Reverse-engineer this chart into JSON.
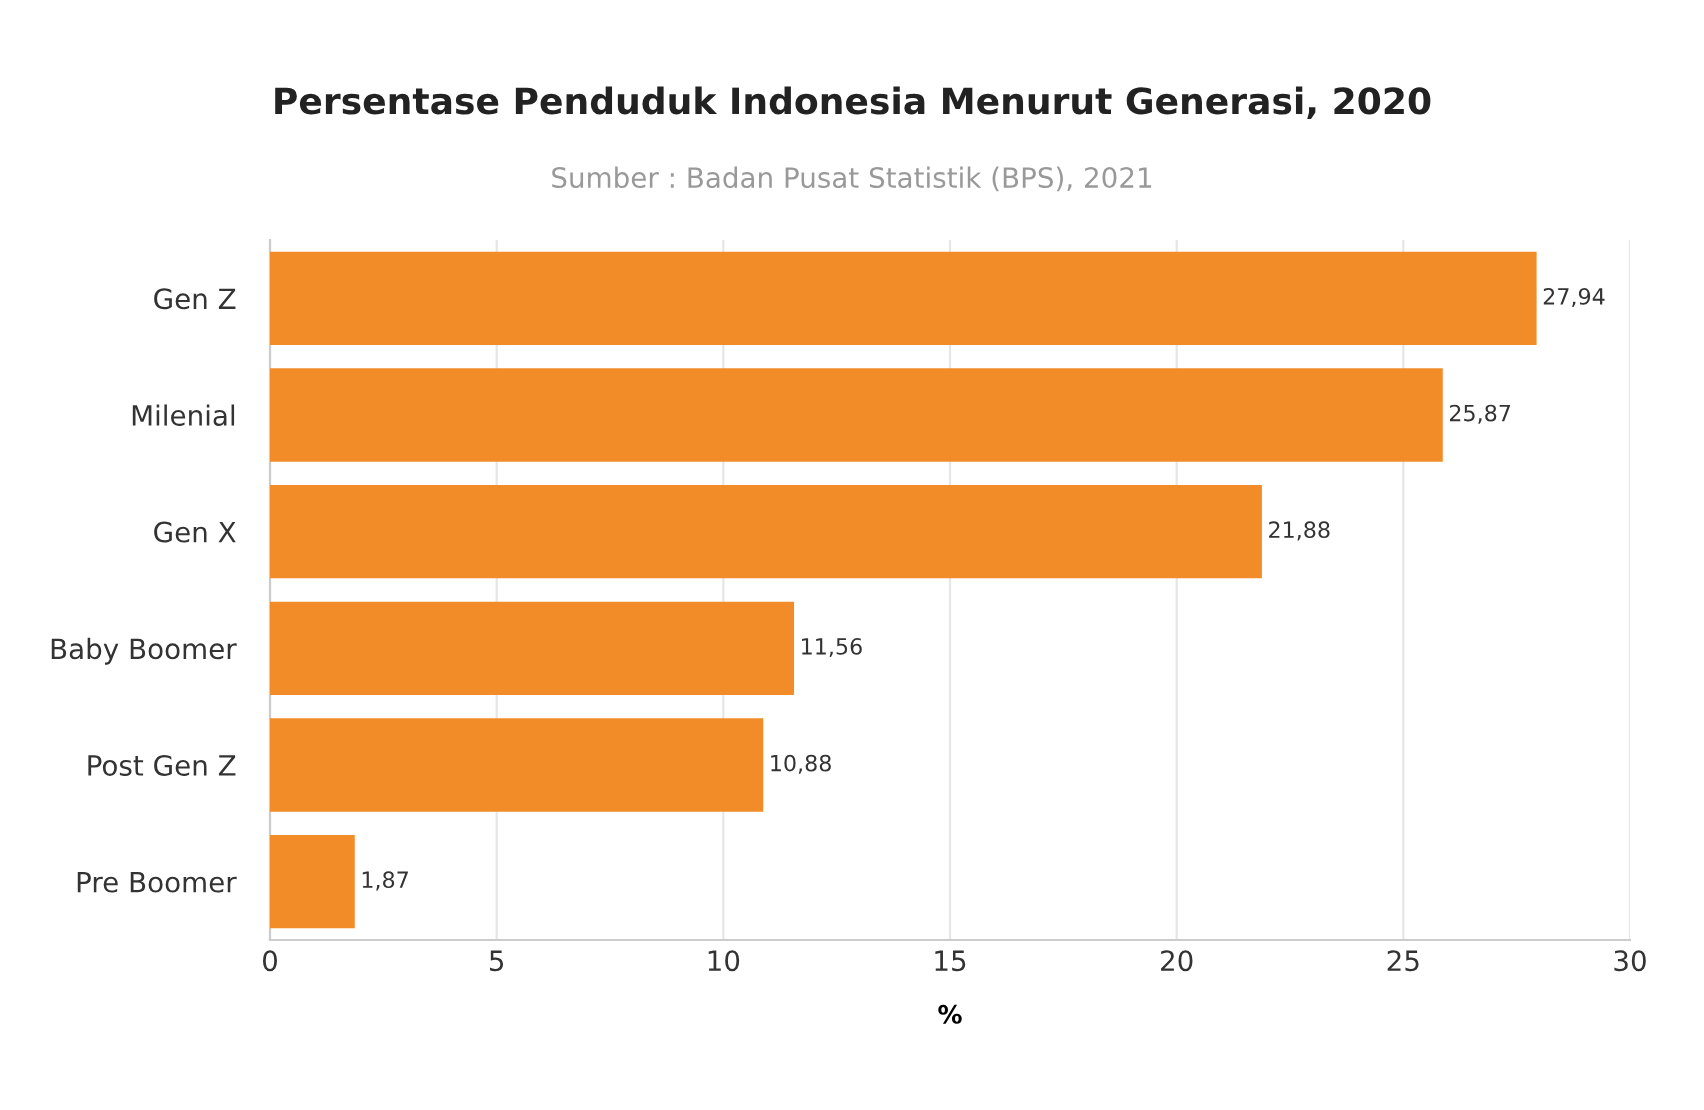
{
  "chart_data": {
    "type": "bar",
    "orientation": "horizontal",
    "title": "Persentase Penduduk Indonesia Menurut Generasi, 2020",
    "subtitle": "Sumber : Badan Pusat Statistik (BPS), 2021",
    "xlabel": "%",
    "categories": [
      "Gen Z",
      "Milenial",
      "Gen X",
      "Baby Boomer",
      "Post Gen Z",
      "Pre Boomer"
    ],
    "values": [
      27.94,
      25.87,
      21.88,
      11.56,
      10.88,
      1.87
    ],
    "value_labels": [
      "27,94",
      "25,87",
      "21,88",
      "11,56",
      "10,88",
      "1,87"
    ],
    "color": "#f28c28",
    "xlim": [
      0,
      30
    ],
    "xticks": [
      0,
      5,
      10,
      15,
      20,
      25,
      30
    ],
    "grid": "x",
    "legend": false
  }
}
